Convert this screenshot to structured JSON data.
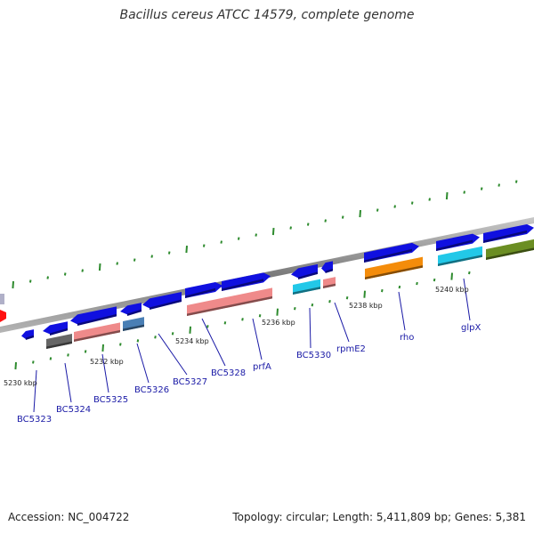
{
  "title": "Bacillus cereus ATCC 14579, complete genome",
  "accession": "Accession: NC_004722",
  "topology": "Topology: circular; Length: 5,411,809 bp; Genes: 5,381",
  "tick_labels": [
    "5230 kbp",
    "5232 kbp",
    "5234 kbp",
    "5236 kbp",
    "5238 kbp",
    "5240 kbp"
  ],
  "gene_labels": [
    "BC5323",
    "BC5324",
    "BC5325",
    "BC5326",
    "BC5327",
    "BC5328",
    "prfA",
    "BC5330",
    "rpmE2",
    "rho",
    "glpX"
  ],
  "colors": {
    "cds": "#1010e0",
    "grey": "#666666",
    "salmon": "#ef8a8a",
    "steel": "#4a7fb5",
    "cyan": "#22c8e8",
    "orange": "#f48c0a",
    "olive": "#6b8e23",
    "tick": "#2e8b2e",
    "backbone": "#8a8a8a",
    "label": "#1a1aa6"
  }
}
